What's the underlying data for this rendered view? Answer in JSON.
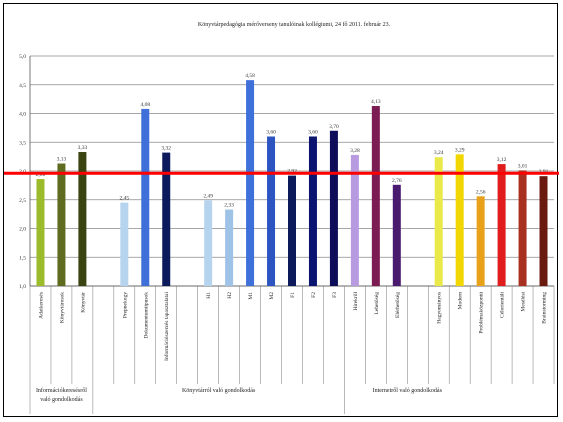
{
  "chart_data": {
    "type": "bar",
    "title": "Könyvtárpedagógia mérőverseny tanulóinak kollégiumi, 24 fő 2011. február 23.",
    "xlabel": "",
    "ylabel": "",
    "ylim": [
      1.0,
      5.0
    ],
    "yticks": [
      "1,0",
      "1,5",
      "2,0",
      "2,5",
      "3,0",
      "3,5",
      "4,0",
      "4,5",
      "5,0"
    ],
    "grid": true,
    "reference_line": {
      "value": 2.96,
      "color": "#ff0000"
    },
    "groups": [
      {
        "label_lines": [
          "Információkeresésről",
          "való gondolkodás"
        ],
        "start": 0,
        "end": 2
      },
      {
        "label_lines": [
          "Könyvtárról való gondolkodás"
        ],
        "start": 3,
        "end": 14
      },
      {
        "label_lines": [
          "Internetről való gondolkodás"
        ],
        "start": 15,
        "end": 20
      }
    ],
    "bars": [
      {
        "category": "Adatkeresés",
        "value": 2.86,
        "label": "2,86",
        "color": "#9bbb2b"
      },
      {
        "category": "Könyvtárosok",
        "value": 3.13,
        "label": "3,13",
        "color": "#5f6b1f"
      },
      {
        "category": "Könyvtár",
        "value": 3.33,
        "label": "3,33",
        "color": "#3a4410"
      },
      {
        "category": "",
        "value": null,
        "label": "",
        "color": ""
      },
      {
        "category": "Prepnekogy",
        "value": 2.45,
        "label": "2,45",
        "color": "#b7d4ef"
      },
      {
        "category": "Dokumentumtípusok",
        "value": 4.08,
        "label": "4,08",
        "color": "#3f6fd8"
      },
      {
        "category": "Információszerzés tapasztalatai",
        "value": 3.32,
        "label": "3,32",
        "color": "#0c1a5b"
      },
      {
        "category": "",
        "value": null,
        "label": "",
        "color": ""
      },
      {
        "category": "H1",
        "value": 2.49,
        "label": "2,49",
        "color": "#b7d4ef"
      },
      {
        "category": "H2",
        "value": 2.33,
        "label": "2,33",
        "color": "#9fc3e6"
      },
      {
        "category": "M1",
        "value": 4.58,
        "label": "4,58",
        "color": "#3f6fd8"
      },
      {
        "category": "M2",
        "value": 3.6,
        "label": "3,60",
        "color": "#2c55c2"
      },
      {
        "category": "F1",
        "value": 2.92,
        "label": "2,92",
        "color": "#0c1a5b"
      },
      {
        "category": "F2",
        "value": 3.6,
        "label": "3,60",
        "color": "#0b1570"
      },
      {
        "category": "F3",
        "value": 3.7,
        "label": "3,70",
        "color": "#0d0d5a"
      },
      {
        "category": "Hírekről",
        "value": 3.28,
        "label": "3,28",
        "color": "#b79ae0"
      },
      {
        "category": "Lehetőség",
        "value": 4.13,
        "label": "4,13",
        "color": "#7b1c52"
      },
      {
        "category": "Elérhetőség",
        "value": 2.76,
        "label": "2,76",
        "color": "#4a1a6e"
      },
      {
        "category": "",
        "value": null,
        "label": "",
        "color": ""
      },
      {
        "category": "Hagyományos",
        "value": 3.24,
        "label": "3,24",
        "color": "#e9e94a"
      },
      {
        "category": "Modern",
        "value": 3.29,
        "label": "3,29",
        "color": "#f2d600"
      },
      {
        "category": "Problémaközpontú",
        "value": 2.56,
        "label": "2,56",
        "color": "#e8a21a"
      },
      {
        "category": "Célorientált",
        "value": 3.12,
        "label": "3,12",
        "color": "#e01c1c"
      },
      {
        "category": "Mesélést",
        "value": 3.01,
        "label": "3,01",
        "color": "#a83020"
      },
      {
        "category": "Brainstorming",
        "value": 2.91,
        "label": "2,91",
        "color": "#6b1a0f"
      }
    ]
  }
}
